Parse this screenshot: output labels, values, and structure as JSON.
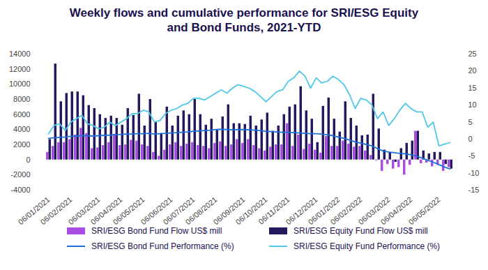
{
  "chart_data": {
    "type": "bar",
    "title": "Weekly flows and cumulative performance for SRI/ESG Equity and Bond Funds, 2021-YTD",
    "categories": [
      "06/01/2021",
      null,
      null,
      null,
      "06/02/2021",
      null,
      null,
      null,
      null,
      "06/03/2021",
      null,
      null,
      null,
      "06/04/2021",
      null,
      null,
      null,
      "06/05/2021",
      null,
      null,
      null,
      null,
      "06/06/2021",
      null,
      null,
      null,
      "06/07/2021",
      null,
      null,
      null,
      "06/08/2021",
      null,
      null,
      null,
      null,
      "06/09/2021",
      null,
      null,
      null,
      "06/10/2021",
      null,
      null,
      null,
      "06/11/2021",
      null,
      null,
      null,
      null,
      "06/12/2021",
      null,
      null,
      null,
      "06/01/2022",
      null,
      null,
      null,
      "06/02/2022",
      null,
      null,
      null,
      null,
      "06/03/2022",
      null,
      null,
      null,
      "06/04/2022",
      null,
      null,
      null,
      null,
      "06/05/2022",
      null,
      null
    ],
    "series": [
      {
        "name": "SRI/ESG Bond Fund Flow US$ mill",
        "type": "bar",
        "color": "#aa4ee3",
        "values": [
          1000,
          1800,
          2300,
          2300,
          2700,
          3300,
          4200,
          3500,
          1500,
          1600,
          1900,
          2300,
          3400,
          1900,
          2000,
          2600,
          2500,
          2000,
          1800,
          1000,
          500,
          1300,
          2000,
          2300,
          1800,
          2100,
          2300,
          1900,
          1800,
          1500,
          2200,
          2400,
          1800,
          2000,
          2700,
          2200,
          2700,
          1900,
          1500,
          1200,
          1700,
          2000,
          2000,
          4800,
          1800,
          3300,
          1400,
          2100,
          1300,
          900,
          3100,
          1800,
          1800,
          2500,
          2100,
          1700,
          1800,
          1200,
          600,
          -100,
          -1500,
          -600,
          -1200,
          -1000,
          -2000,
          -700,
          3800,
          -500,
          -400,
          -900,
          -700,
          -1500,
          -1000
        ]
      },
      {
        "name": "SRI/ESG Equity Fund Flow US$ mill",
        "type": "bar",
        "color": "#24195e",
        "values": [
          2700,
          12700,
          7700,
          8800,
          9000,
          9000,
          8500,
          7200,
          6800,
          6000,
          5500,
          5800,
          5500,
          4600,
          6800,
          5900,
          8700,
          4500,
          8000,
          5000,
          3500,
          7000,
          4500,
          5800,
          6500,
          6000,
          8000,
          6000,
          4600,
          5400,
          4000,
          5700,
          7300,
          4800,
          4800,
          4700,
          5800,
          4500,
          5300,
          6200,
          3800,
          4500,
          6000,
          7000,
          7300,
          9700,
          6500,
          5400,
          2300,
          7100,
          8200,
          5400,
          3700,
          7700,
          5500,
          4500,
          3200,
          3300,
          8700,
          4100,
          1300,
          1000,
          -300,
          1500,
          2200,
          2500,
          3800,
          1200,
          800,
          1000,
          1000,
          -600,
          -1200
        ]
      },
      {
        "name": "SRI/ESG Bond Fund Performance (%)",
        "type": "line",
        "axis": "y2",
        "color": "#1e6fd9",
        "values": [
          0.2,
          0.4,
          0.5,
          0.6,
          0.8,
          0.9,
          1.0,
          1.0,
          0.9,
          1.0,
          1.1,
          1.2,
          1.3,
          1.4,
          1.5,
          1.5,
          1.6,
          1.6,
          1.7,
          1.5,
          1.6,
          1.7,
          1.8,
          1.9,
          2.0,
          2.1,
          2.3,
          2.4,
          2.5,
          2.6,
          2.8,
          2.9,
          2.8,
          2.7,
          2.8,
          2.8,
          2.7,
          2.6,
          2.5,
          2.3,
          2.2,
          2.1,
          2.0,
          2.0,
          1.9,
          1.8,
          1.7,
          1.6,
          1.6,
          1.5,
          1.3,
          1.0,
          0.6,
          0.2,
          -0.3,
          -0.8,
          -1.2,
          -1.6,
          -2.0,
          -2.8,
          -3.5,
          -3.8,
          -4.0,
          -4.2,
          -4.3,
          -4.6,
          -5.0,
          -5.6,
          -6.2,
          -6.8,
          -7.5,
          -8.2,
          -8.8
        ]
      },
      {
        "name": "SRI/ESG Equity Fund Performance (%)",
        "type": "line",
        "axis": "y2",
        "color": "#4fc8e8",
        "values": [
          1.5,
          4,
          4.5,
          2.5,
          5,
          6,
          7,
          4.5,
          4,
          3,
          3.5,
          5,
          4,
          5,
          6,
          7.5,
          7.5,
          8.5,
          8,
          5,
          5.5,
          7.5,
          8.5,
          9,
          10,
          10.5,
          12,
          12,
          11.5,
          12.5,
          13.5,
          14.5,
          13.5,
          15,
          16,
          15.5,
          15,
          14,
          12.5,
          11,
          12.5,
          14,
          14.5,
          17,
          18,
          20,
          18.5,
          15,
          18,
          16.5,
          17,
          18.5,
          17.5,
          16,
          13,
          9,
          12,
          11.5,
          10,
          6,
          8,
          4,
          6,
          8.5,
          10.5,
          9,
          8,
          8,
          3.5,
          5,
          -2,
          -1.5,
          -1
        ]
      }
    ],
    "ylim": [
      -4000,
      14000
    ],
    "yticks": [
      -4000,
      -2000,
      0,
      2000,
      4000,
      6000,
      8000,
      10000,
      12000,
      14000
    ],
    "y2lim": [
      -15,
      25
    ],
    "y2ticks": [
      -15,
      -10,
      -5,
      0,
      5,
      10,
      15,
      20,
      25
    ],
    "grid": false,
    "legend": "bottom"
  }
}
